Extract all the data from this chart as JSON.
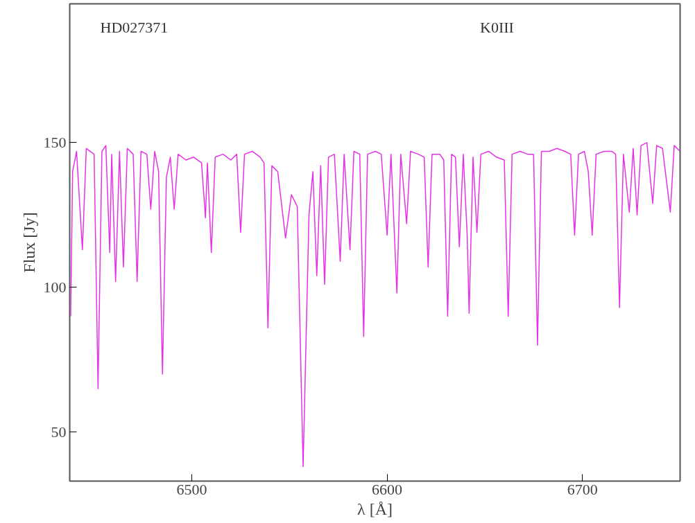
{
  "chart_data": {
    "type": "line",
    "annotations": [
      "HD027371",
      "K0III"
    ],
    "xlabel": "λ [Å]",
    "ylabel": "Flux [Jy]",
    "xlim": [
      6437.5,
      6750
    ],
    "ylim": [
      33,
      198
    ],
    "xticks": [
      6500,
      6600,
      6700
    ],
    "yticks": [
      50,
      100,
      150
    ],
    "grid": false,
    "marker": "none",
    "line_style": "solid",
    "series": [
      {
        "color": "#e632e6",
        "x": [
          6438,
          6439,
          6441,
          6444,
          6446,
          6450,
          6452,
          6454,
          6456,
          6458,
          6459,
          6461,
          6463,
          6465,
          6467,
          6470,
          6472,
          6474,
          6477,
          6479,
          6481,
          6483,
          6485,
          6487,
          6489,
          6491,
          6493,
          6497,
          6501,
          6505,
          6507,
          6508,
          6510,
          6512,
          6516,
          6520,
          6523,
          6525,
          6527,
          6531,
          6535,
          6537,
          6539,
          6541,
          6544,
          6548,
          6551,
          6554,
          6557,
          6560,
          6562,
          6564,
          6566,
          6568,
          6570,
          6573,
          6576,
          6578,
          6581,
          6583,
          6586,
          6588,
          6590,
          6594,
          6597,
          6600,
          6602,
          6605,
          6607,
          6610,
          6612,
          6616,
          6619,
          6621,
          6623,
          6627,
          6629,
          6631,
          6633,
          6635,
          6637,
          6639,
          6641,
          6642,
          6644,
          6646,
          6648,
          6652,
          6656,
          6660,
          6662,
          6664,
          6668,
          6672,
          6675,
          6677,
          6679,
          6683,
          6687,
          6691,
          6694,
          6696,
          6698,
          6701,
          6703,
          6705,
          6707,
          6711,
          6715,
          6717,
          6719,
          6721,
          6724,
          6726,
          6728,
          6730,
          6733,
          6736,
          6738,
          6741,
          6745,
          6747,
          6750
        ],
        "values": [
          90,
          140,
          147,
          113,
          148,
          146,
          65,
          147,
          149,
          112,
          146,
          102,
          147,
          107,
          148,
          146,
          102,
          147,
          146,
          127,
          147,
          140,
          70,
          138,
          145,
          127,
          146,
          144,
          145,
          143,
          124,
          143,
          112,
          145,
          146,
          144,
          146,
          119,
          146,
          147,
          145,
          143,
          86,
          142,
          140,
          117,
          132,
          128,
          38,
          125,
          140,
          104,
          142,
          101,
          145,
          146,
          109,
          146,
          113,
          147,
          146,
          83,
          146,
          147,
          146,
          118,
          146,
          98,
          146,
          122,
          147,
          146,
          145,
          107,
          146,
          146,
          144,
          90,
          146,
          145,
          114,
          146,
          118,
          91,
          145,
          119,
          146,
          147,
          145,
          144,
          90,
          146,
          147,
          146,
          146,
          80,
          147,
          147,
          148,
          147,
          146,
          118,
          146,
          147,
          140,
          118,
          146,
          147,
          147,
          146,
          93,
          146,
          126,
          148,
          125,
          149,
          150,
          129,
          149,
          148,
          126,
          149,
          147
        ]
      }
    ]
  }
}
